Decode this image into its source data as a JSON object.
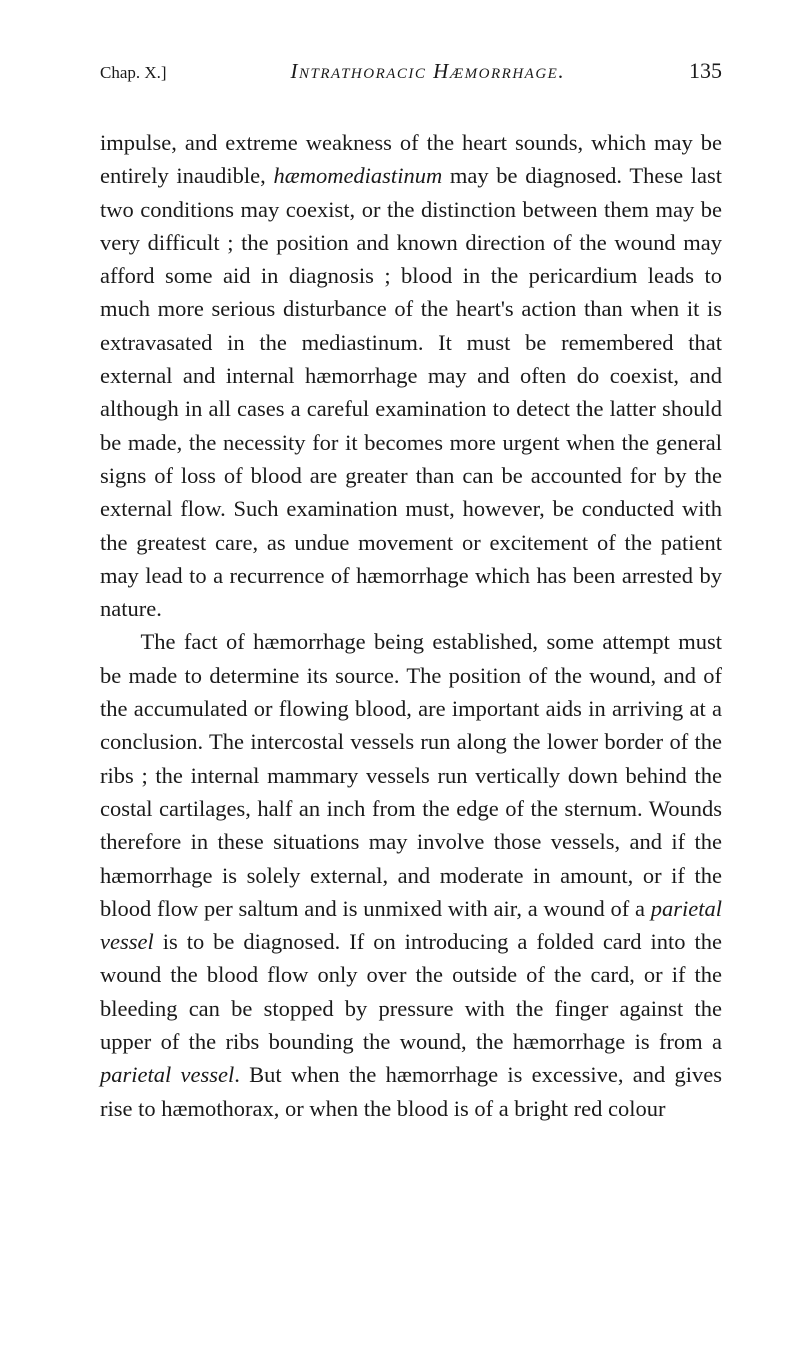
{
  "header": {
    "chapter": "Chap. X.]",
    "running_title": "Intrathoracic Hæmorrhage.",
    "page_number": "135"
  },
  "paragraphs": {
    "p1_a": "impulse, and extreme weakness of the heart sounds, which may be entirely inaudible, ",
    "p1_ital1": "hæmomediastinum",
    "p1_b": " may be diagnosed. These last two conditions may coexist, or the distinction between them may be very difficult ; the position and known direction of the wound may afford some aid in diagnosis ; blood in the pericardium leads to much more serious disturbance of the heart's action than when it is extravasated in the mediastinum. It must be remembered that external and internal hæmorrhage may and often do coexist, and although in all cases a careful examination to detect the latter should be made, the necessity for it becomes more urgent when the general signs of loss of blood are greater than can be accounted for by the external flow. Such examination must, however, be conducted with the greatest care, as undue movement or excitement of the patient may lead to a recurrence of hæmorrhage which has been arrested by nature.",
    "p2_a": "The fact of hæmorrhage being established, some attempt must be made to determine its source. The position of the wound, and of the accumulated or flowing blood, are important aids in arriving at a conclusion. The intercostal vessels run along the lower border of the ribs ; the internal mammary vessels run vertically down behind the costal cartilages, half an inch from the edge of the sternum. Wounds therefore in these situations may involve those vessels, and if the hæmorrhage is solely external, and moderate in amount, or if the blood flow per saltum and is unmixed with air, a wound of a ",
    "p2_ital1": "parietal vessel",
    "p2_b": " is to be diagnosed. If on introducing a folded card into the wound the blood flow only over the outside of the card, or if the bleeding can be stopped by pressure with the finger against the upper of the ribs bounding the wound, the hæmorrhage is from a ",
    "p2_ital2": "parietal vessel",
    "p2_c": ". But when the hæmorrhage is excessive, and gives rise to hæmothorax, or when the blood is of a bright red colour"
  }
}
